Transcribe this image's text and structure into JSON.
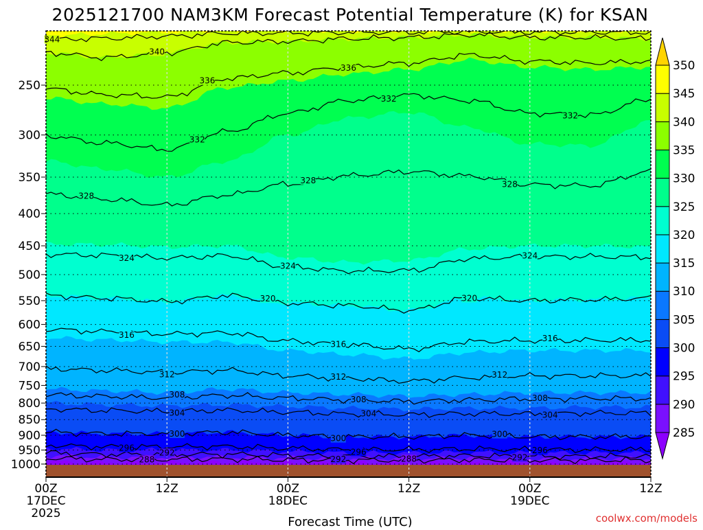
{
  "chart_data": {
    "type": "heatmap",
    "subtype": "filled-contour time-pressure cross section",
    "title": "2025121700 NAM3KM Forecast Potential Temperature (K) for KSAN",
    "xlabel": "Forecast Time (UTC)",
    "ylabel": "",
    "credit": "coolwx.com/models",
    "x_range_hours": [
      0,
      60
    ],
    "y_range_hpa": [
      205,
      1049
    ],
    "y_scale": "log",
    "y_ticks": [
      250,
      300,
      350,
      400,
      450,
      500,
      550,
      600,
      650,
      700,
      750,
      800,
      850,
      900,
      950,
      1000
    ],
    "x_ticks": [
      {
        "hour": 0,
        "lines": [
          "00Z",
          "17DEC",
          "2025"
        ]
      },
      {
        "hour": 12,
        "lines": [
          "12Z"
        ]
      },
      {
        "hour": 24,
        "lines": [
          "00Z",
          "18DEC"
        ]
      },
      {
        "hour": 36,
        "lines": [
          "12Z"
        ]
      },
      {
        "hour": 48,
        "lines": [
          "00Z",
          "19DEC"
        ]
      },
      {
        "hour": 60,
        "lines": [
          "12Z"
        ]
      }
    ],
    "colorbar": {
      "levels": [
        285,
        290,
        295,
        300,
        305,
        310,
        315,
        320,
        325,
        330,
        335,
        340,
        345,
        350
      ],
      "colors": [
        "#8c00ff",
        "#7a10ff",
        "#4010ff",
        "#0000ff",
        "#0a4cf5",
        "#0a78ff",
        "#00b4ff",
        "#00e8ff",
        "#00ffd0",
        "#00ff8c",
        "#00ff50",
        "#8cff00",
        "#c8ff00",
        "#ffff00",
        "#ffd400"
      ]
    },
    "ground_color": "#a0522d",
    "knot_hours": [
      0,
      6,
      12,
      18,
      24,
      30,
      36,
      42,
      48,
      54,
      60
    ],
    "isentrope_pressure_hpa": {
      "285": [
        992,
        995,
        995,
        993,
        995,
        995,
        996,
        995,
        995,
        995,
        995
      ],
      "290": [
        970,
        975,
        975,
        975,
        978,
        980,
        980,
        978,
        980,
        980,
        980
      ],
      "295": [
        945,
        950,
        950,
        950,
        955,
        960,
        960,
        958,
        960,
        960,
        960
      ],
      "300": [
        890,
        895,
        895,
        890,
        900,
        905,
        905,
        900,
        905,
        905,
        905
      ],
      "305": [
        800,
        805,
        808,
        805,
        810,
        815,
        818,
        815,
        815,
        812,
        812
      ],
      "310": [
        760,
        765,
        770,
        760,
        770,
        775,
        780,
        775,
        770,
        770,
        770
      ],
      "315": [
        630,
        635,
        640,
        640,
        660,
        670,
        680,
        665,
        660,
        660,
        660
      ],
      "320": [
        540,
        545,
        552,
        540,
        555,
        560,
        570,
        545,
        550,
        548,
        545
      ],
      "325": [
        447,
        448,
        452,
        450,
        470,
        478,
        475,
        455,
        450,
        450,
        452
      ],
      "330": [
        330,
        340,
        350,
        330,
        300,
        282,
        276,
        292,
        310,
        312,
        285
      ],
      "335": [
        262,
        268,
        272,
        252,
        246,
        240,
        236,
        228,
        234,
        236,
        234
      ],
      "340": [
        222,
        226,
        222,
        214,
        213,
        211,
        210,
        208,
        210,
        210,
        211
      ],
      "345": [
        209,
        207,
        206,
        205,
        205,
        205,
        205,
        205,
        205,
        205,
        205
      ]
    },
    "contour_levels": [
      288,
      292,
      296,
      300,
      304,
      308,
      312,
      316,
      320,
      324,
      328,
      332,
      336,
      340,
      344
    ],
    "contour_labels": [
      {
        "value": "344",
        "hour": 0.6
      },
      {
        "value": "340",
        "hour": 11
      },
      {
        "value": "336",
        "hour": 16
      },
      {
        "value": "336",
        "hour": 30
      },
      {
        "value": "332",
        "hour": 34
      },
      {
        "value": "332",
        "hour": 52
      },
      {
        "value": "332",
        "hour": 15
      },
      {
        "value": "328",
        "hour": 26
      },
      {
        "value": "328",
        "hour": 4
      },
      {
        "value": "328",
        "hour": 46
      },
      {
        "value": "324",
        "hour": 8
      },
      {
        "value": "324",
        "hour": 24
      },
      {
        "value": "324",
        "hour": 48
      },
      {
        "value": "320",
        "hour": 22
      },
      {
        "value": "320",
        "hour": 42
      },
      {
        "value": "316",
        "hour": 8
      },
      {
        "value": "316",
        "hour": 29
      },
      {
        "value": "316",
        "hour": 50
      },
      {
        "value": "312",
        "hour": 12
      },
      {
        "value": "312",
        "hour": 29
      },
      {
        "value": "312",
        "hour": 45
      },
      {
        "value": "308",
        "hour": 13
      },
      {
        "value": "308",
        "hour": 31
      },
      {
        "value": "308",
        "hour": 49
      },
      {
        "value": "304",
        "hour": 13
      },
      {
        "value": "304",
        "hour": 32
      },
      {
        "value": "304",
        "hour": 50
      },
      {
        "value": "300",
        "hour": 13
      },
      {
        "value": "300",
        "hour": 29
      },
      {
        "value": "300",
        "hour": 45
      },
      {
        "value": "296",
        "hour": 8
      },
      {
        "value": "296",
        "hour": 31
      },
      {
        "value": "296",
        "hour": 49
      },
      {
        "value": "288",
        "hour": 10
      },
      {
        "value": "292",
        "hour": 12
      },
      {
        "value": "292",
        "hour": 29
      },
      {
        "value": "288",
        "hour": 36
      },
      {
        "value": "292",
        "hour": 47
      }
    ]
  }
}
